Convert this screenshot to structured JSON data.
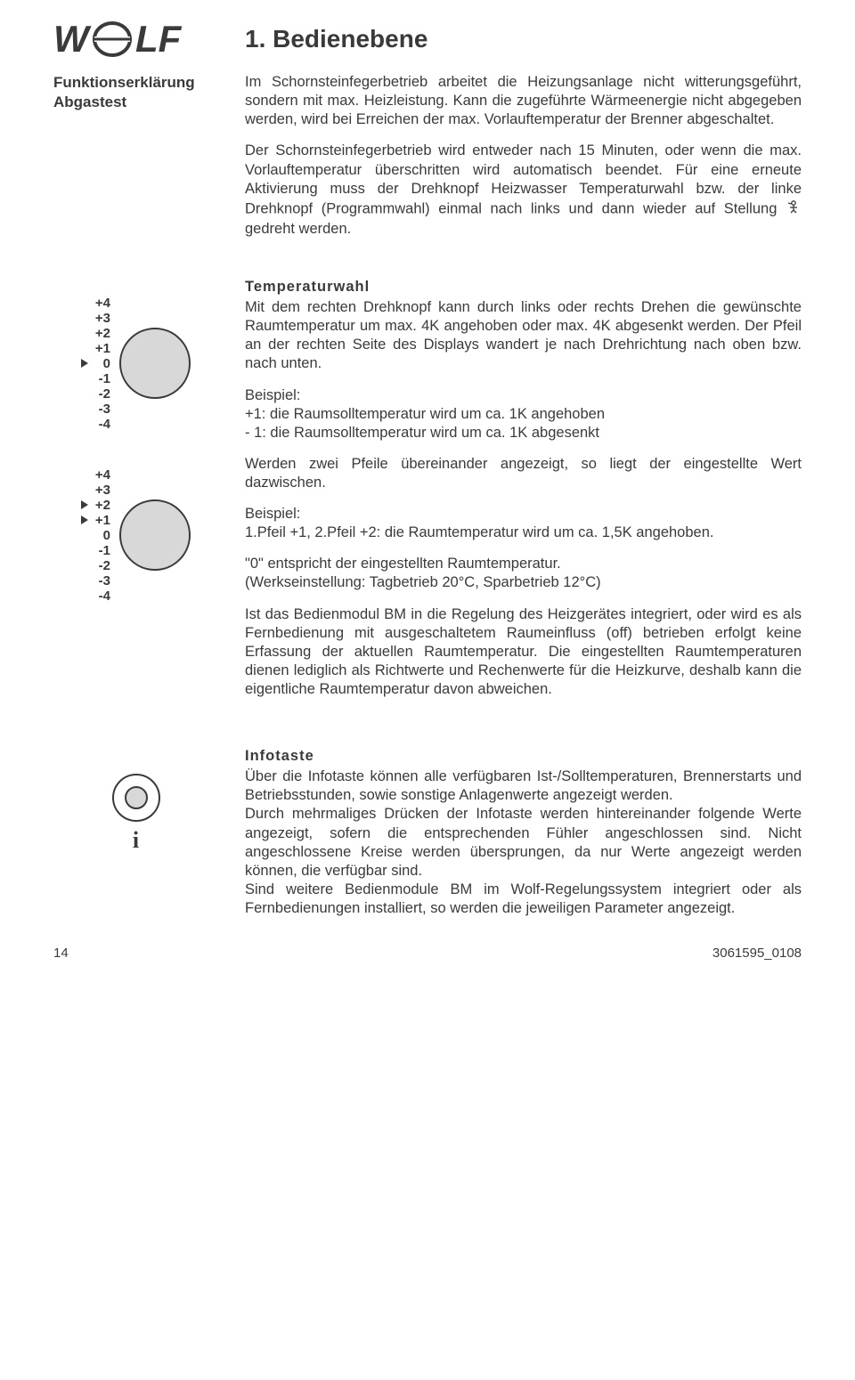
{
  "title": "1. Bedienebene",
  "sidebar": {
    "heading1": "Funktionserklärung",
    "heading2": "Abgastest"
  },
  "abgas": {
    "p1": "Im Schornsteinfegerbetrieb arbeitet die Heizungsanlage nicht witterungsgeführt, sondern mit max. Heizleistung. Kann die zugeführte Wärmeenergie nicht abgegeben werden, wird bei Erreichen der max. Vorlauftemperatur der Brenner abgeschaltet.",
    "p2a": "Der Schornsteinfegerbetrieb wird entweder nach 15 Minuten, oder wenn die max. Vorlauftemperatur überschritten wird automatisch beendet. Für eine erneute Aktivierung muss der Drehknopf Heizwasser Temperaturwahl bzw. der linke Drehknopf (Programmwahl) einmal nach links und dann wieder auf Stellung",
    "p2b": " gedreht werden."
  },
  "temp": {
    "title": "Temperaturwahl",
    "p1": "Mit dem rechten Drehknopf kann durch links oder rechts Drehen die gewünschte Raumtemperatur um max. 4K angehoben oder max. 4K abgesenkt werden. Der Pfeil an der rechten Seite des Displays wandert je nach Drehrichtung nach oben bzw. nach unten.",
    "ex1l": "Beispiel:",
    "ex1a": "+1: die Raumsolltemperatur wird um ca. 1K angehoben",
    "ex1b": "- 1: die Raumsolltemperatur wird um ca. 1K abgesenkt",
    "p2": "Werden zwei Pfeile übereinander angezeigt, so liegt der eingestellte Wert dazwischen.",
    "ex2l": "Beispiel:",
    "ex2": "1.Pfeil +1, 2.Pfeil +2: die Raumtemperatur wird um ca. 1,5K angehoben.",
    "p3a": "\"0\" entspricht der eingestellten Raumtemperatur.",
    "p3b": "(Werkseinstellung: Tagbetrieb 20°C, Sparbetrieb 12°C)",
    "p4": "Ist das Bedienmodul BM in die Regelung des Heizgerätes integriert, oder wird es als Fernbedienung mit ausgeschaltetem Raumeinfluss (off) betrieben erfolgt keine Erfassung der aktuellen Raumtemperatur. Die eingestellten Raumtemperaturen dienen lediglich als Richtwerte und Rechenwerte für die Heizkurve, deshalb kann die eigentliche Raumtemperatur davon abweichen."
  },
  "info": {
    "title": "Infotaste",
    "p1": "Über die Infotaste können alle verfügbaren Ist-/Solltemperaturen, Brennerstarts und Betriebsstunden, sowie sonstige Anlagenwerte angezeigt werden.",
    "p2": "Durch mehrmaliges Drücken der Infotaste werden hintereinander folgende Werte angezeigt, sofern die entsprechenden Fühler angeschlossen sind. Nicht angeschlossene Kreise werden übersprungen, da nur Werte angezeigt werden können, die verfügbar sind.",
    "p3": "Sind weitere Bedienmodule BM im Wolf-Regelungssystem integriert oder als Fernbedienungen installiert, so werden die jeweiligen Parameter angezeigt."
  },
  "dial": {
    "scale": [
      "+4",
      "+3",
      "+2",
      "+1",
      "0",
      "-1",
      "-2",
      "-3",
      "-4"
    ],
    "arrows1": [
      4
    ],
    "arrows2": [
      2,
      3
    ],
    "knob_fill": "#d8d8d8",
    "knob_stroke": "#3a3a3a"
  },
  "info_icon": {
    "label": "i"
  },
  "footer": {
    "page": "14",
    "doc": "3061595_0108"
  }
}
